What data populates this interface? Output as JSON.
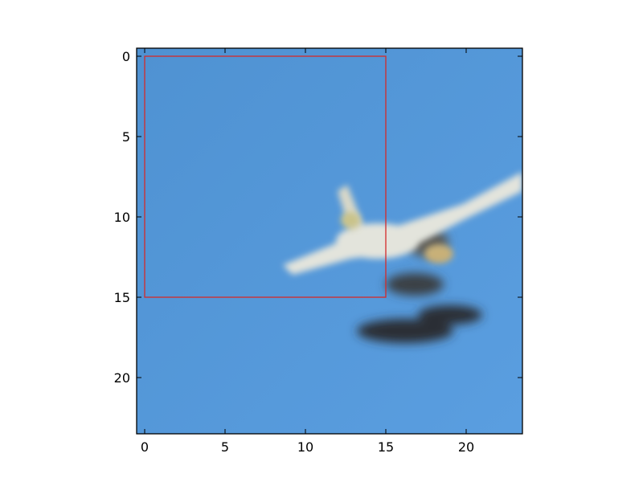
{
  "chart_data": {
    "type": "heatmap",
    "title": "",
    "xlabel": "",
    "ylabel": "",
    "xlim": [
      -0.5,
      23.5
    ],
    "ylim": [
      23.5,
      -0.5
    ],
    "x_ticks": [
      0,
      5,
      10,
      15,
      20
    ],
    "y_ticks": [
      0,
      5,
      10,
      15,
      20
    ],
    "x_tick_labels": [
      "0",
      "5",
      "10",
      "15",
      "20"
    ],
    "y_tick_labels": [
      "0",
      "5",
      "10",
      "15",
      "20"
    ],
    "grid": false,
    "image": {
      "description_key": "aircraft-on-sky",
      "background_color": "#4f92d2",
      "background_color_light": "#5a9ee0",
      "subject_light_color": "#e3e4dc",
      "subject_dark_color": "#2a2f36",
      "subject_accent_color": "#c8b078"
    },
    "annotations": [
      {
        "type": "rectangle",
        "x0": 0,
        "y0": 0,
        "x1": 15,
        "y1": 15,
        "color": "#d42a2a"
      }
    ]
  },
  "colors": {
    "axes_edge": "#000000",
    "tick_text": "#000000"
  }
}
